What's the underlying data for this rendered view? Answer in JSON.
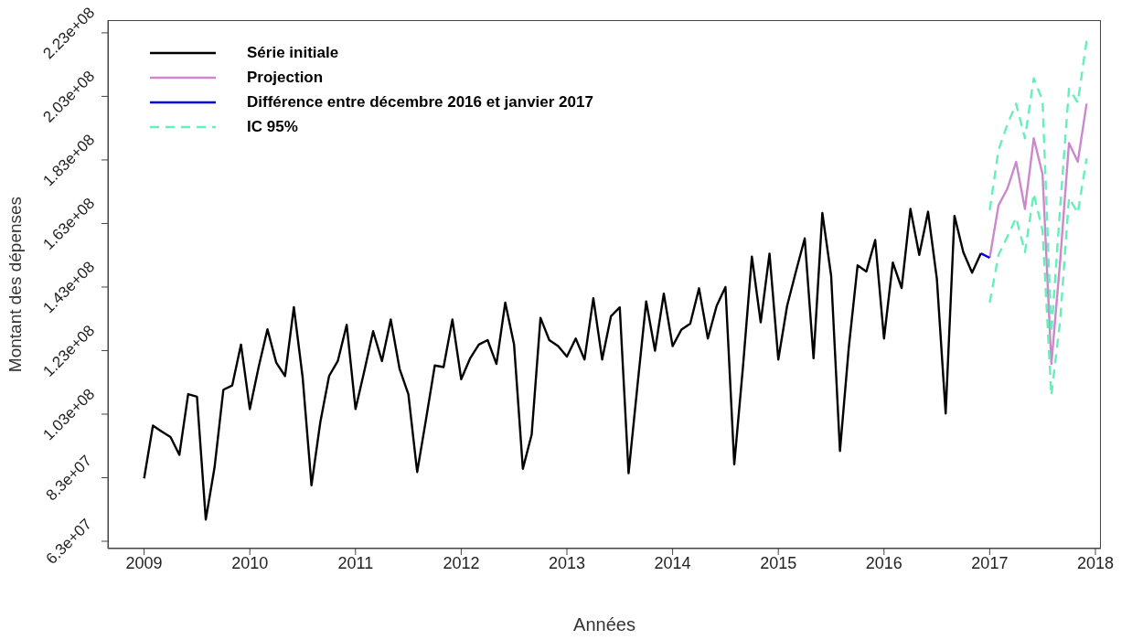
{
  "chart_data": {
    "type": "line",
    "xlabel": "Années",
    "ylabel": "Montant des dépenses",
    "legend": "top left",
    "xlim": [
      "2008-08-28",
      "2018-01-20"
    ],
    "xticks": [
      {
        "value": "2009",
        "label": "2009"
      },
      {
        "value": "2010",
        "label": "2010"
      },
      {
        "value": "2011",
        "label": "2011"
      },
      {
        "value": "2012",
        "label": "2012"
      },
      {
        "value": "2013",
        "label": "2013"
      },
      {
        "value": "2014",
        "label": "2014"
      },
      {
        "value": "2015",
        "label": "2015"
      },
      {
        "value": "2016",
        "label": "2016"
      },
      {
        "value": "2017",
        "label": "2017"
      },
      {
        "value": "2018",
        "label": "2018"
      }
    ],
    "ylim": [
      60700000,
      227000000
    ],
    "yticks": [
      {
        "value": 63000000,
        "label": "6.3e+07"
      },
      {
        "value": 83000000,
        "label": "8.3e+07"
      },
      {
        "value": 103000000,
        "label": "1.03e+08"
      },
      {
        "value": 123000000,
        "label": "1.23e+08"
      },
      {
        "value": 143000000,
        "label": "1.43e+08"
      },
      {
        "value": 163000000,
        "label": "1.63e+08"
      },
      {
        "value": 183000000,
        "label": "1.83e+08"
      },
      {
        "value": 203000000,
        "label": "2.03e+08"
      },
      {
        "value": 223000000,
        "label": "2.23e+08"
      }
    ],
    "series": [
      {
        "name": "Série initiale",
        "color": "#000000",
        "line_style": "solid",
        "x": [
          "2009-01",
          "2009-02",
          "2009-03",
          "2009-04",
          "2009-05",
          "2009-06",
          "2009-07",
          "2009-08",
          "2009-09",
          "2009-10",
          "2009-11",
          "2009-12",
          "2010-01",
          "2010-02",
          "2010-03",
          "2010-04",
          "2010-05",
          "2010-06",
          "2010-07",
          "2010-08",
          "2010-09",
          "2010-10",
          "2010-11",
          "2010-12",
          "2011-01",
          "2011-02",
          "2011-03",
          "2011-04",
          "2011-05",
          "2011-06",
          "2011-07",
          "2011-08",
          "2011-09",
          "2011-10",
          "2011-11",
          "2011-12",
          "2012-01",
          "2012-02",
          "2012-03",
          "2012-04",
          "2012-05",
          "2012-06",
          "2012-07",
          "2012-08",
          "2012-09",
          "2012-10",
          "2012-11",
          "2012-12",
          "2013-01",
          "2013-02",
          "2013-03",
          "2013-04",
          "2013-05",
          "2013-06",
          "2013-07",
          "2013-08",
          "2013-09",
          "2013-10",
          "2013-11",
          "2013-12",
          "2014-01",
          "2014-02",
          "2014-03",
          "2014-04",
          "2014-05",
          "2014-06",
          "2014-07",
          "2014-08",
          "2014-09",
          "2014-10",
          "2014-11",
          "2014-12",
          "2015-01",
          "2015-02",
          "2015-03",
          "2015-04",
          "2015-05",
          "2015-06",
          "2015-07",
          "2015-08",
          "2015-09",
          "2015-10",
          "2015-11",
          "2015-12",
          "2016-01",
          "2016-02",
          "2016-03",
          "2016-04",
          "2016-05",
          "2016-06",
          "2016-07",
          "2016-08",
          "2016-09",
          "2016-10",
          "2016-11",
          "2016-12"
        ],
        "values": [
          82800000,
          99400000,
          97500000,
          95800000,
          90200000,
          109300000,
          108500000,
          69800000,
          86300000,
          110700000,
          112000000,
          124900000,
          104600000,
          117800000,
          129700000,
          119200000,
          115000000,
          136700000,
          114500000,
          80600000,
          100400000,
          115000000,
          119800000,
          131100000,
          104600000,
          116600000,
          129100000,
          119700000,
          132800000,
          117300000,
          109300000,
          84800000,
          101300000,
          118300000,
          117800000,
          132800000,
          114000000,
          120500000,
          124900000,
          126300000,
          118800000,
          138100000,
          124900000,
          85800000,
          96600000,
          133300000,
          126300000,
          124400000,
          121100000,
          126800000,
          120200000,
          139500000,
          120200000,
          133800000,
          136600000,
          84400000,
          111700000,
          138500000,
          123000000,
          140900000,
          124400000,
          129600000,
          131500000,
          142600000,
          126800000,
          137100000,
          143000000,
          87200000,
          118300000,
          152600000,
          131900000,
          153500000,
          120200000,
          137100000,
          147900000,
          158300000,
          120600000,
          166300000,
          146500000,
          91400000,
          123900000,
          149800000,
          147900000,
          157800000,
          126800000,
          150700000,
          142700000,
          167600000,
          153100000,
          166700000,
          145600000,
          103200000,
          165400000,
          154000000,
          147500000,
          153600000
        ]
      },
      {
        "name": "Projection",
        "color": "#cc88cc",
        "line_style": "solid",
        "x": [
          "2017-01",
          "2017-02",
          "2017-03",
          "2017-04",
          "2017-05",
          "2017-06",
          "2017-07",
          "2017-08",
          "2017-09",
          "2017-10",
          "2017-11",
          "2017-12"
        ],
        "values": [
          152200000,
          168700000,
          173900000,
          182400000,
          167600000,
          189800000,
          178500000,
          118800000,
          151300000,
          188300000,
          182400000,
          200700000
        ]
      },
      {
        "name": "Différence entre décembre 2016 et janvier 2017",
        "color": "#0000ee",
        "line_style": "solid",
        "x": [
          "2016-12",
          "2017-01"
        ],
        "values": [
          153600000,
          152200000
        ]
      },
      {
        "name": "IC 95%",
        "color": "#66eebb",
        "line_style": "dashed",
        "x": [
          "2017-01",
          "2017-02",
          "2017-03",
          "2017-04",
          "2017-05",
          "2017-06",
          "2017-07",
          "2017-08",
          "2017-09",
          "2017-10",
          "2017-11",
          "2017-12"
        ],
        "values": [
          167200000,
          186100000,
          194100000,
          200700000,
          189800000,
          208700000,
          201700000,
          128600000,
          168200000,
          205400000,
          201100000,
          220500000
        ]
      },
      {
        "color": "#66eebb",
        "line_style": "dashed",
        "x": [
          "2017-01",
          "2017-02",
          "2017-03",
          "2017-04",
          "2017-05",
          "2017-06",
          "2017-07",
          "2017-08",
          "2017-09",
          "2017-10",
          "2017-11",
          "2017-12"
        ],
        "values": [
          138100000,
          153100000,
          158800000,
          164800000,
          154000000,
          172400000,
          160700000,
          108900000,
          132500000,
          171100000,
          166300000,
          183500000
        ]
      }
    ]
  }
}
